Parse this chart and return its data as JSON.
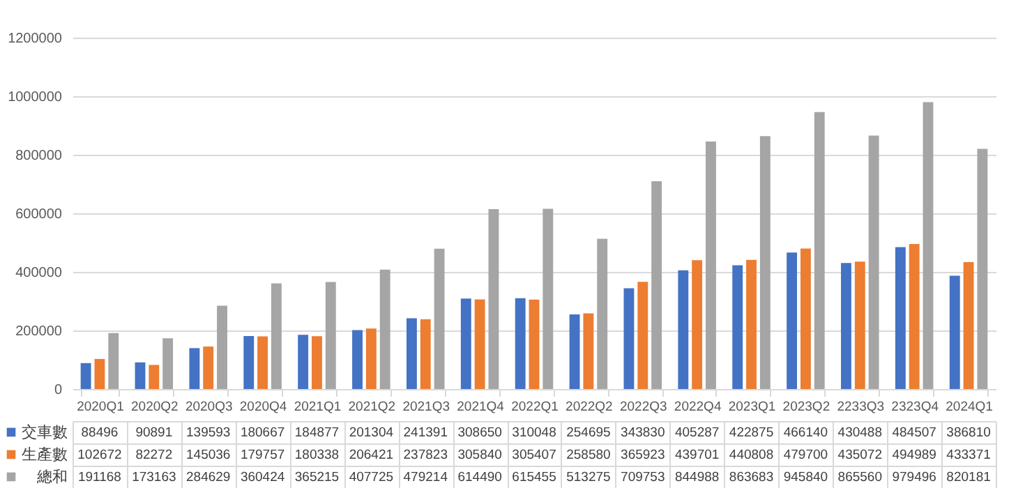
{
  "chart_data": {
    "type": "bar",
    "categories": [
      "2020Q1",
      "2020Q2",
      "2020Q3",
      "2020Q4",
      "2021Q1",
      "2021Q2",
      "2021Q3",
      "2021Q4",
      "2022Q1",
      "2022Q2",
      "2022Q3",
      "2022Q4",
      "2023Q1",
      "2023Q2",
      "2233Q3",
      "2323Q4",
      "2024Q1"
    ],
    "series": [
      {
        "name": "交車數",
        "color": "#4472c4",
        "values": [
          88496,
          90891,
          139593,
          180667,
          184877,
          201304,
          241391,
          308650,
          310048,
          254695,
          343830,
          405287,
          422875,
          466140,
          430488,
          484507,
          386810
        ]
      },
      {
        "name": "生產數",
        "color": "#ed7d31",
        "values": [
          102672,
          82272,
          145036,
          179757,
          180338,
          206421,
          237823,
          305840,
          305407,
          258580,
          365923,
          439701,
          440808,
          479700,
          435072,
          494989,
          433371
        ]
      },
      {
        "name": "總和",
        "color": "#a5a5a5",
        "values": [
          191168,
          173163,
          284629,
          360424,
          365215,
          407725,
          479214,
          614490,
          615455,
          513275,
          709753,
          844988,
          863683,
          945840,
          865560,
          979496,
          820181
        ]
      }
    ],
    "ylim": [
      0,
      1200000
    ],
    "yticks": [
      0,
      200000,
      400000,
      600000,
      800000,
      1000000,
      1200000
    ],
    "grid": "y",
    "legend": "bottom",
    "data_labels": true
  }
}
